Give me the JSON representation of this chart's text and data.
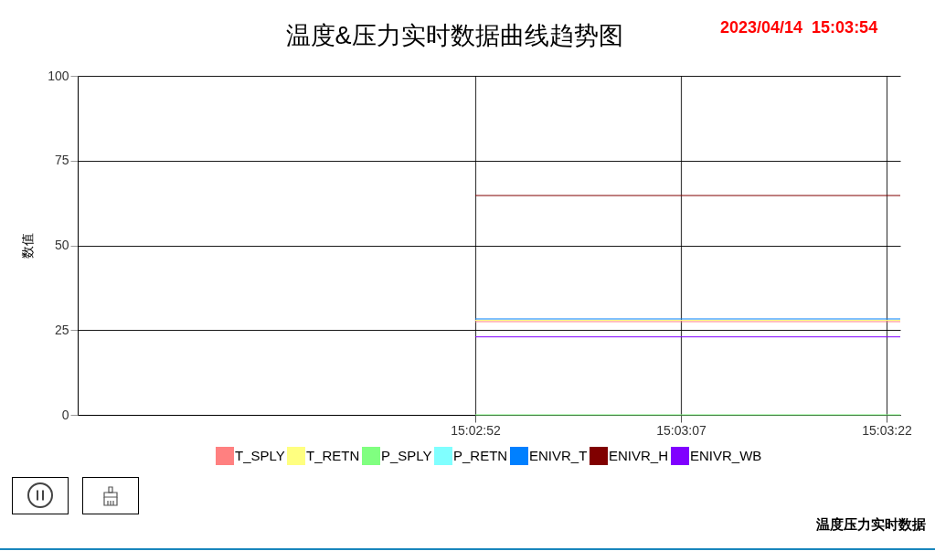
{
  "chart_data": {
    "type": "line",
    "title": "温度&压力实时数据曲线趋势图",
    "ylabel": "数值",
    "annotations": [
      "2023/04/14  15:03:54",
      "温度压力实时数据"
    ],
    "x": [
      "2023-04-14T15:02:52",
      "2023-04-14T15:03:23"
    ],
    "series": [
      {
        "name": "T_SPLY",
        "color": "#ff8080",
        "values": [
          27.5,
          27.5
        ]
      },
      {
        "name": "T_RETN",
        "color": "#ffff80",
        "values": [
          27.9,
          27.9
        ]
      },
      {
        "name": "P_SPLY",
        "color": "#80ff80",
        "values": [
          0,
          0
        ]
      },
      {
        "name": "P_RETN",
        "color": "#80ffff",
        "values": [
          null,
          null
        ]
      },
      {
        "name": "ENIVR_T",
        "color": "#0080ff",
        "values": [
          28.3,
          28.3
        ]
      },
      {
        "name": "ENIVR_H",
        "color": "#800000",
        "values": [
          64.7,
          64.7
        ]
      },
      {
        "name": "ENIVR_WB",
        "color": "#8000ff",
        "values": [
          23,
          23
        ]
      }
    ],
    "xlim": [
      "2023-04-14T15:02:23",
      "2023-04-14T15:03:23"
    ],
    "xticks": [
      {
        "value": "2023-04-14T15:02:52",
        "label": "15:02:52"
      },
      {
        "value": "2023-04-14T15:03:07",
        "label": "15:03:07"
      },
      {
        "value": "2023-04-14T15:03:22",
        "label": "15:03:22"
      }
    ],
    "ylim": [
      0,
      100
    ],
    "yticks": [
      0,
      25,
      50,
      75,
      100
    ],
    "grid": true,
    "legend": "bottom"
  }
}
